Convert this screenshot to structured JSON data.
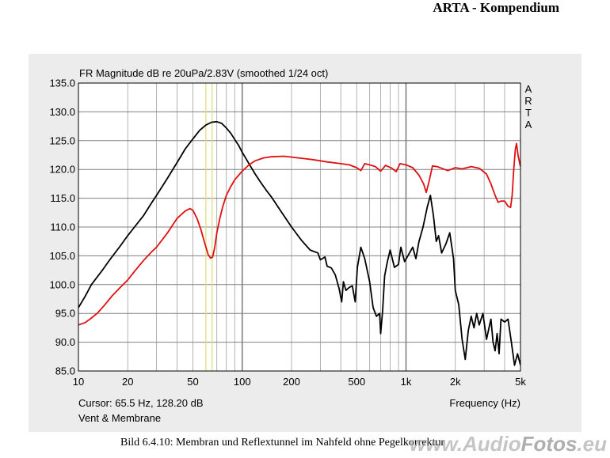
{
  "header": {
    "title": "ARTA - Kompendium"
  },
  "caption": "Bild 6.4.10: Membran und Reflextunnel im Nahfeld ohne Pegelkorrektur",
  "watermark": {
    "part1": "www.Audio",
    "part2": "Fotos",
    "part3": ".eu"
  },
  "colors": {
    "panel": "#ececec",
    "plot": "#ffffff",
    "grid": "#a0a0a0",
    "cursor": "#e0e070",
    "black": "#000000",
    "red": "#e01010"
  },
  "chart_data": {
    "type": "line",
    "title": "FR Magnitude dB re 20uPa/2.83V (smoothed 1/24 oct)",
    "brand_label": "ARTA",
    "xlabel": "Frequency (Hz)",
    "x_scale": "log",
    "xlim": [
      10,
      5000
    ],
    "ylim": [
      85,
      135
    ],
    "grid": true,
    "x_ticks": [
      {
        "value": 10,
        "label": "10"
      },
      {
        "value": 20,
        "label": "20"
      },
      {
        "value": 50,
        "label": "50"
      },
      {
        "value": 100,
        "label": "100"
      },
      {
        "value": 200,
        "label": "200"
      },
      {
        "value": 500,
        "label": "500"
      },
      {
        "value": 1000,
        "label": "1k"
      },
      {
        "value": 2000,
        "label": "2k"
      },
      {
        "value": 5000,
        "label": "5k"
      }
    ],
    "y_ticks": [
      {
        "value": 135,
        "label": "135.0"
      },
      {
        "value": 130,
        "label": "130.0"
      },
      {
        "value": 125,
        "label": "125.0"
      },
      {
        "value": 120,
        "label": "120.0"
      },
      {
        "value": 115,
        "label": "115.0"
      },
      {
        "value": 110,
        "label": "110.0"
      },
      {
        "value": 105,
        "label": "105.0"
      },
      {
        "value": 100,
        "label": "100.0"
      },
      {
        "value": 95,
        "label": "95.0"
      },
      {
        "value": 90,
        "label": "90.0"
      },
      {
        "value": 85,
        "label": "85.0"
      }
    ],
    "cursor": {
      "freq": 65.5,
      "line2_freq": 60,
      "readout": "Cursor: 65.5 Hz, 128.20 dB"
    },
    "legend_label": "Vent & Membrane",
    "series": [
      {
        "color": "#000000",
        "points": [
          [
            10,
            96.0
          ],
          [
            11,
            98.0
          ],
          [
            12,
            100.0
          ],
          [
            13,
            101.3
          ],
          [
            14,
            102.5
          ],
          [
            15,
            103.7
          ],
          [
            16,
            104.8
          ],
          [
            18,
            106.7
          ],
          [
            20,
            108.5
          ],
          [
            22,
            110.0
          ],
          [
            25,
            112.0
          ],
          [
            28,
            114.2
          ],
          [
            30,
            115.5
          ],
          [
            35,
            118.5
          ],
          [
            40,
            121.2
          ],
          [
            45,
            123.6
          ],
          [
            50,
            125.3
          ],
          [
            55,
            126.8
          ],
          [
            60,
            127.7
          ],
          [
            65,
            128.2
          ],
          [
            70,
            128.3
          ],
          [
            75,
            128.0
          ],
          [
            80,
            127.2
          ],
          [
            85,
            126.3
          ],
          [
            90,
            125.2
          ],
          [
            95,
            124.2
          ],
          [
            100,
            123.0
          ],
          [
            110,
            121.0
          ],
          [
            120,
            119.2
          ],
          [
            130,
            117.7
          ],
          [
            140,
            116.4
          ],
          [
            150,
            115.3
          ],
          [
            170,
            113.0
          ],
          [
            200,
            110.0
          ],
          [
            230,
            107.7
          ],
          [
            260,
            106.0
          ],
          [
            290,
            105.5
          ],
          [
            300,
            104.3
          ],
          [
            320,
            104.8
          ],
          [
            330,
            103.2
          ],
          [
            350,
            102.9
          ],
          [
            370,
            101.7
          ],
          [
            390,
            99.4
          ],
          [
            405,
            97.0
          ],
          [
            415,
            100.5
          ],
          [
            430,
            99.0
          ],
          [
            450,
            99.5
          ],
          [
            470,
            99.8
          ],
          [
            490,
            97.0
          ],
          [
            505,
            103.0
          ],
          [
            530,
            106.5
          ],
          [
            560,
            104.5
          ],
          [
            600,
            100.5
          ],
          [
            630,
            96.0
          ],
          [
            660,
            94.5
          ],
          [
            690,
            95.0
          ],
          [
            700,
            91.5
          ],
          [
            720,
            95.5
          ],
          [
            740,
            101.5
          ],
          [
            770,
            104.0
          ],
          [
            800,
            106.0
          ],
          [
            850,
            103.0
          ],
          [
            900,
            103.5
          ],
          [
            930,
            106.5
          ],
          [
            980,
            104.0
          ],
          [
            1050,
            105.5
          ],
          [
            1100,
            106.5
          ],
          [
            1150,
            104.5
          ],
          [
            1200,
            107.5
          ],
          [
            1270,
            110.0
          ],
          [
            1350,
            113.5
          ],
          [
            1410,
            115.5
          ],
          [
            1470,
            112.0
          ],
          [
            1530,
            107.5
          ],
          [
            1580,
            108.5
          ],
          [
            1650,
            105.5
          ],
          [
            1750,
            107.0
          ],
          [
            1850,
            109.0
          ],
          [
            1950,
            104.5
          ],
          [
            2000,
            99.0
          ],
          [
            2100,
            96.5
          ],
          [
            2200,
            90.5
          ],
          [
            2300,
            87.0
          ],
          [
            2400,
            92.0
          ],
          [
            2500,
            94.5
          ],
          [
            2600,
            92.5
          ],
          [
            2700,
            95.0
          ],
          [
            2800,
            93.0
          ],
          [
            2950,
            95.0
          ],
          [
            3100,
            90.5
          ],
          [
            3300,
            94.0
          ],
          [
            3400,
            90.0
          ],
          [
            3500,
            88.5
          ],
          [
            3600,
            91.5
          ],
          [
            3700,
            88.0
          ],
          [
            3800,
            94.0
          ],
          [
            4000,
            93.5
          ],
          [
            4200,
            94.0
          ],
          [
            4400,
            90.0
          ],
          [
            4600,
            86.0
          ],
          [
            4800,
            88.0
          ],
          [
            5000,
            86.0
          ]
        ]
      },
      {
        "color": "#e01010",
        "points": [
          [
            10,
            93.0
          ],
          [
            11,
            93.4
          ],
          [
            12,
            94.2
          ],
          [
            13,
            95.0
          ],
          [
            14,
            96.0
          ],
          [
            15,
            97.0
          ],
          [
            16,
            98.0
          ],
          [
            18,
            99.5
          ],
          [
            20,
            100.8
          ],
          [
            22,
            102.3
          ],
          [
            25,
            104.2
          ],
          [
            28,
            105.7
          ],
          [
            30,
            106.5
          ],
          [
            35,
            109.0
          ],
          [
            40,
            111.5
          ],
          [
            45,
            112.8
          ],
          [
            48,
            113.2
          ],
          [
            50,
            112.9
          ],
          [
            53,
            111.5
          ],
          [
            56,
            109.5
          ],
          [
            59,
            107.2
          ],
          [
            62,
            105.2
          ],
          [
            64,
            104.6
          ],
          [
            66,
            104.8
          ],
          [
            68,
            106.5
          ],
          [
            70,
            109.0
          ],
          [
            73,
            111.5
          ],
          [
            76,
            113.5
          ],
          [
            80,
            115.5
          ],
          [
            85,
            117.0
          ],
          [
            90,
            118.2
          ],
          [
            100,
            119.7
          ],
          [
            110,
            120.8
          ],
          [
            120,
            121.5
          ],
          [
            135,
            122.0
          ],
          [
            150,
            122.2
          ],
          [
            180,
            122.3
          ],
          [
            220,
            122.0
          ],
          [
            270,
            121.7
          ],
          [
            330,
            121.3
          ],
          [
            400,
            121.0
          ],
          [
            450,
            120.8
          ],
          [
            500,
            120.3
          ],
          [
            530,
            119.8
          ],
          [
            560,
            121.0
          ],
          [
            600,
            120.8
          ],
          [
            650,
            120.5
          ],
          [
            700,
            119.7
          ],
          [
            750,
            120.7
          ],
          [
            820,
            120.2
          ],
          [
            870,
            119.6
          ],
          [
            920,
            121.0
          ],
          [
            1000,
            120.8
          ],
          [
            1100,
            120.3
          ],
          [
            1200,
            119.0
          ],
          [
            1280,
            117.5
          ],
          [
            1330,
            116.0
          ],
          [
            1380,
            117.8
          ],
          [
            1450,
            120.6
          ],
          [
            1550,
            120.5
          ],
          [
            1650,
            120.2
          ],
          [
            1800,
            119.8
          ],
          [
            2000,
            120.3
          ],
          [
            2200,
            120.1
          ],
          [
            2500,
            120.5
          ],
          [
            2800,
            120.2
          ],
          [
            3100,
            119.2
          ],
          [
            3300,
            117.5
          ],
          [
            3500,
            115.5
          ],
          [
            3650,
            114.3
          ],
          [
            3800,
            114.5
          ],
          [
            4000,
            114.5
          ],
          [
            4200,
            113.6
          ],
          [
            4350,
            113.4
          ],
          [
            4450,
            115.5
          ],
          [
            4550,
            120.0
          ],
          [
            4650,
            123.5
          ],
          [
            4730,
            124.5
          ],
          [
            4830,
            122.5
          ],
          [
            4950,
            121.0
          ],
          [
            5000,
            120.5
          ]
        ]
      }
    ]
  }
}
